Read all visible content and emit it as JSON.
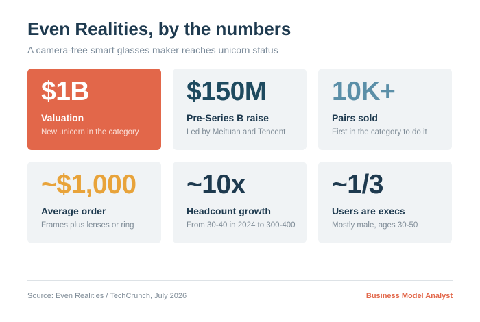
{
  "header": {
    "title": "Even Realities, by the numbers",
    "subtitle": "A camera-free smart glasses maker reaches unicorn status"
  },
  "cards": [
    {
      "value": "$1B",
      "label": "Valuation",
      "note": "New unicorn in the category"
    },
    {
      "value": "$150M",
      "label": "Pre-Series B raise",
      "note": "Led by Meituan and Tencent"
    },
    {
      "value": "10K+",
      "label": "Pairs sold",
      "note": "First in the category to do it"
    },
    {
      "value": "~$1,000",
      "label": "Average order",
      "note": "Frames plus lenses or ring"
    },
    {
      "value": "~10x",
      "label": "Headcount growth",
      "note": "From 30-40 in 2024 to 300-400"
    },
    {
      "value": "~1/3",
      "label": "Users are execs",
      "note": "Mostly male, ages 30-50"
    }
  ],
  "footer": {
    "source": "Source: Even Realities / TechCrunch, July 2026",
    "brand": "Business Model Analyst"
  }
}
